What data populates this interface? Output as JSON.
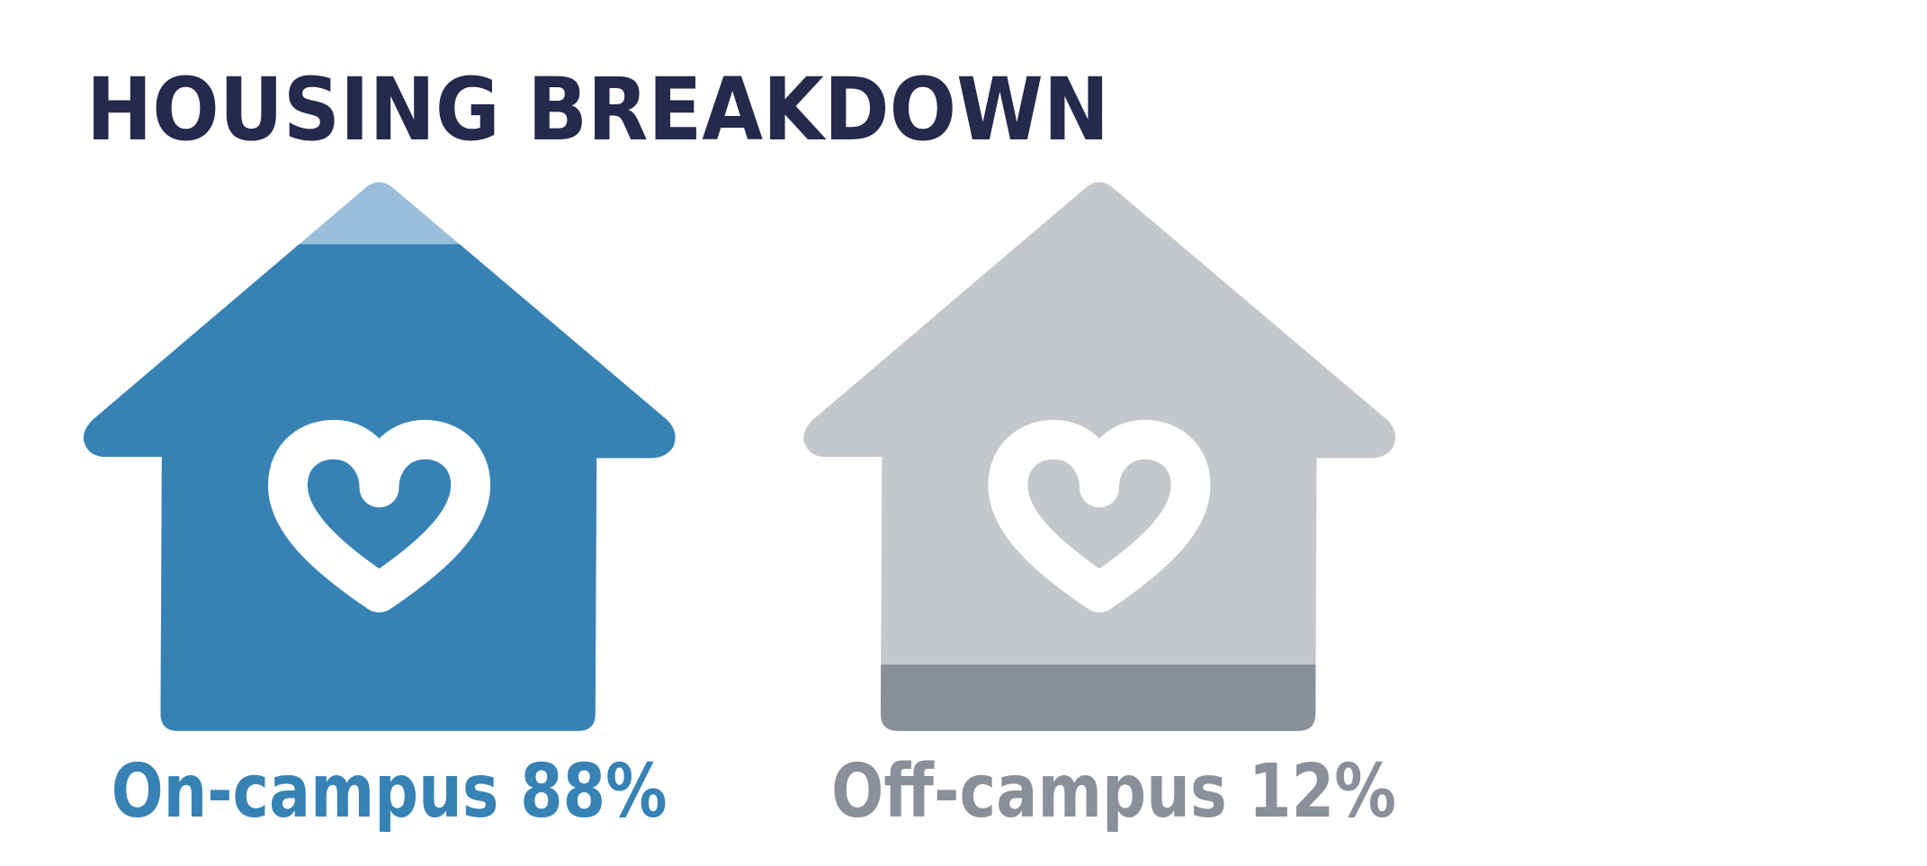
{
  "chart_data": {
    "type": "pictogram",
    "title": "HOUSING BREAKDOWN",
    "categories": [
      "On-campus",
      "Off-campus"
    ],
    "values": [
      88,
      12
    ],
    "value_labels": [
      "88%",
      "12%"
    ],
    "colors": [
      "#3782b5",
      "#8a909a"
    ],
    "empty_colors": [
      "#9bbfda",
      "#c4c7cc"
    ],
    "ylim": [
      0,
      100
    ]
  }
}
